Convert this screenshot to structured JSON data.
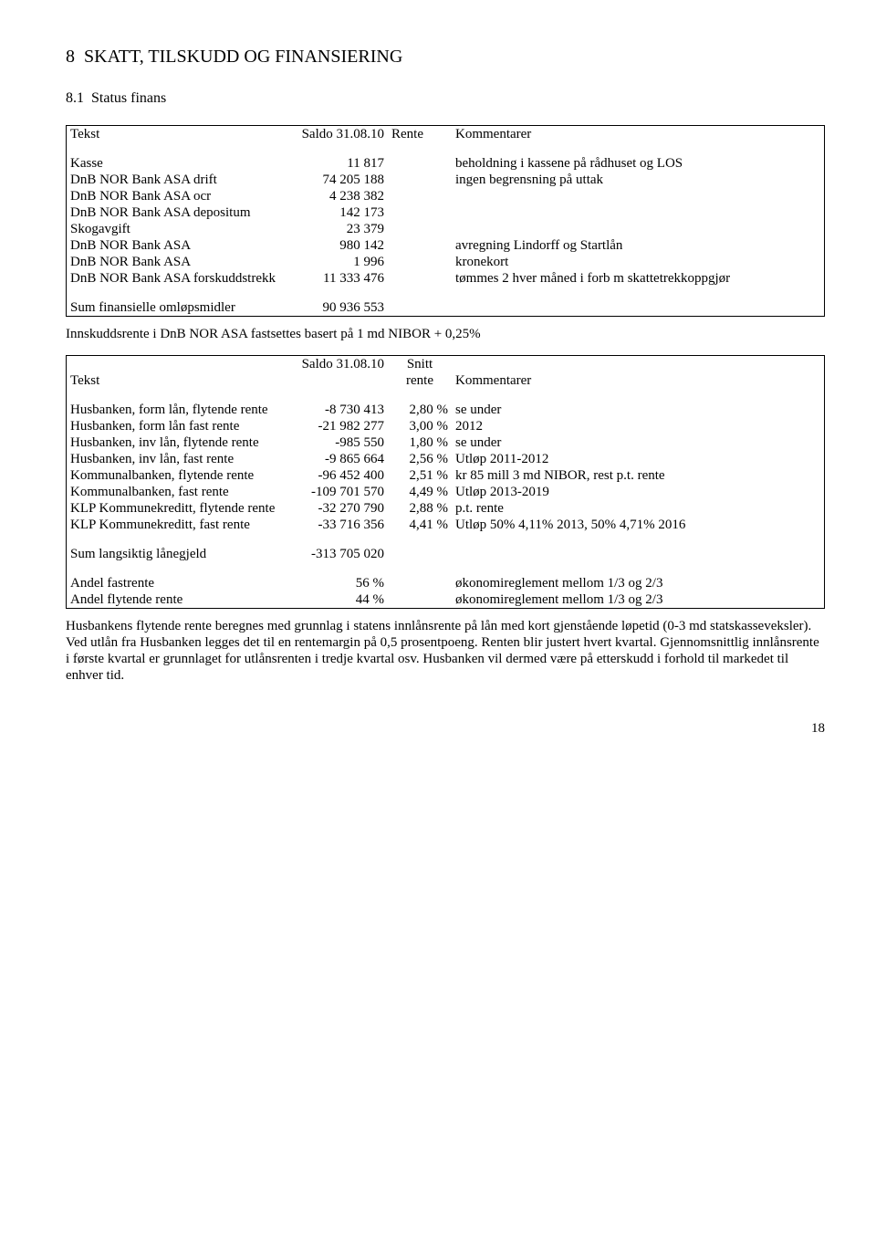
{
  "heading": {
    "chapter": "8",
    "title": "SKATT, TILSKUDD OG FINANSIERING",
    "section_number": "8.1",
    "section_title": "Status finans"
  },
  "table1": {
    "headers": {
      "tekst": "Tekst",
      "saldo": "Saldo 31.08.10",
      "rente": "Rente",
      "kommentarer": "Kommentarer"
    },
    "rows": [
      {
        "tekst": "Kasse",
        "saldo": "11 817",
        "rente": "",
        "komm": "beholdning i kassene på rådhuset og LOS"
      },
      {
        "tekst": "DnB NOR Bank ASA drift",
        "saldo": "74 205 188",
        "rente": "",
        "komm": "ingen begrensning på uttak"
      },
      {
        "tekst": "DnB NOR Bank ASA ocr",
        "saldo": "4 238 382",
        "rente": "",
        "komm": ""
      },
      {
        "tekst": "DnB NOR Bank ASA depositum",
        "saldo": "142 173",
        "rente": "",
        "komm": ""
      },
      {
        "tekst": "Skogavgift",
        "saldo": "23 379",
        "rente": "",
        "komm": ""
      },
      {
        "tekst": "DnB NOR Bank ASA",
        "saldo": "980 142",
        "rente": "",
        "komm": "avregning Lindorff og Startlån"
      },
      {
        "tekst": "DnB NOR Bank ASA",
        "saldo": "1 996",
        "rente": "",
        "komm": "kronekort"
      },
      {
        "tekst": "DnB NOR Bank ASA forskuddstrekk",
        "saldo": "11 333 476",
        "rente": "",
        "komm": "tømmes 2 hver måned i forb m skattetrekkoppgjør"
      }
    ],
    "sum": {
      "label": "Sum finansielle omløpsmidler",
      "value": "90 936 553"
    }
  },
  "mid_note": "Innskuddsrente i DnB NOR ASA fastsettes basert på 1 md NIBOR + 0,25%",
  "table2": {
    "headers": {
      "tekst": "Tekst",
      "saldo": "Saldo 31.08.10",
      "rente": "Snitt rente",
      "kommentarer": "Kommentarer"
    },
    "rows": [
      {
        "tekst": "Husbanken, form lån, flytende rente",
        "saldo": "-8 730 413",
        "rente": "2,80 %",
        "komm": "se under"
      },
      {
        "tekst": "Husbanken, form lån fast rente",
        "saldo": "-21 982 277",
        "rente": "3,00 %",
        "komm": "2012"
      },
      {
        "tekst": "Husbanken, inv lån, flytende rente",
        "saldo": "-985 550",
        "rente": "1,80 %",
        "komm": "se under"
      },
      {
        "tekst": "Husbanken, inv lån, fast rente",
        "saldo": "-9 865 664",
        "rente": "2,56 %",
        "komm": "Utløp 2011-2012"
      },
      {
        "tekst": "Kommunalbanken, flytende rente",
        "saldo": "-96 452 400",
        "rente": "2,51 %",
        "komm": "kr 85 mill 3 md NIBOR, rest p.t. rente"
      },
      {
        "tekst": "Kommunalbanken, fast rente",
        "saldo": "-109 701 570",
        "rente": "4,49 %",
        "komm": "Utløp 2013-2019"
      },
      {
        "tekst": "KLP Kommunekreditt, flytende rente",
        "saldo": "-32 270 790",
        "rente": "2,88 %",
        "komm": "p.t. rente"
      },
      {
        "tekst": "KLP Kommunekreditt, fast rente",
        "saldo": "-33 716 356",
        "rente": "4,41 %",
        "komm": "Utløp 50% 4,11% 2013, 50% 4,71% 2016"
      }
    ],
    "sum": {
      "label": "Sum langsiktig lånegjeld",
      "value": "-313 705 020"
    },
    "andel": [
      {
        "label": "Andel fastrente",
        "value": "56 %",
        "komm": "økonomireglement mellom 1/3 og 2/3"
      },
      {
        "label": "Andel flytende rente",
        "value": "44 %",
        "komm": "økonomireglement mellom 1/3 og 2/3"
      }
    ]
  },
  "paragraph": "Husbankens flytende rente beregnes med grunnlag i statens innlånsrente på lån med kort gjenstående løpetid (0-3 md statskasseveksler). Ved utlån fra Husbanken legges det til en rentemargin på 0,5 prosentpoeng. Renten blir justert hvert kvartal. Gjennomsnittlig innlånsrente i første kvartal er grunnlaget for utlånsrenten i tredje kvartal osv. Husbanken vil dermed være på etterskudd i forhold til markedet til enhver tid.",
  "page_number": "18"
}
